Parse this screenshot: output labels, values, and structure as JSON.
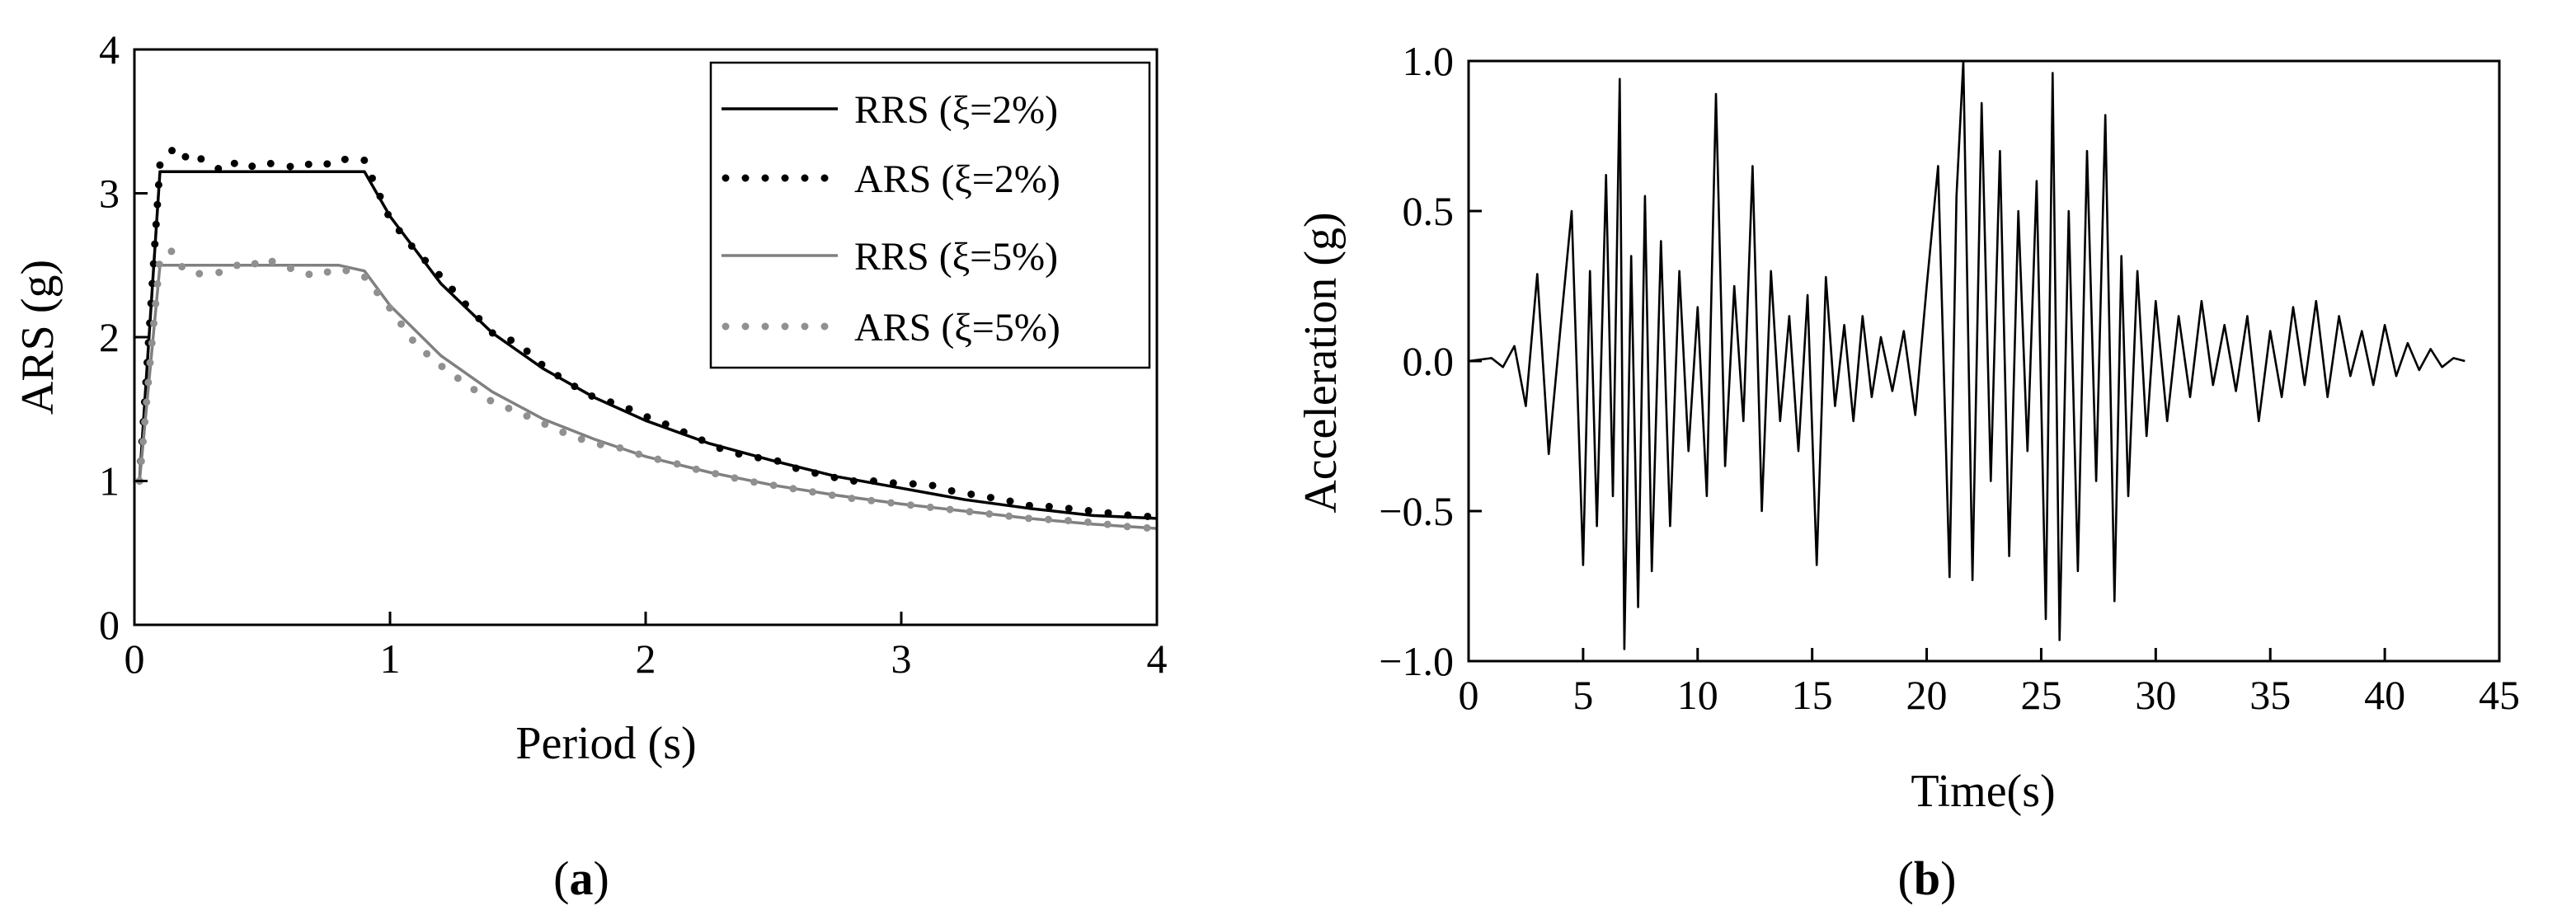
{
  "chart_data": [
    {
      "panel_label": {
        "open": "(",
        "letter": "a",
        "close": ")"
      },
      "type": "line",
      "xlabel": "Period (s)",
      "ylabel": "ARS (g)",
      "xlim": [
        0,
        4
      ],
      "ylim": [
        0,
        4
      ],
      "xticks": [
        0,
        1,
        2,
        3,
        4
      ],
      "yticks": [
        0,
        1,
        2,
        3,
        4
      ],
      "grid": false,
      "legend_position": "top-right",
      "series": [
        {
          "name": "RRS (ξ=2%)",
          "style": "solid",
          "color": "#000000",
          "x": [
            0.02,
            0.1,
            0.2,
            0.4,
            0.6,
            0.8,
            0.9,
            1.0,
            1.2,
            1.4,
            1.6,
            1.8,
            2.0,
            2.25,
            2.5,
            2.75,
            3.0,
            3.25,
            3.5,
            3.75,
            4.0
          ],
          "y": [
            1.0,
            3.15,
            3.15,
            3.15,
            3.15,
            3.15,
            3.15,
            2.84,
            2.37,
            2.03,
            1.78,
            1.58,
            1.42,
            1.26,
            1.14,
            1.03,
            0.95,
            0.87,
            0.81,
            0.76,
            0.74
          ]
        },
        {
          "name": "ARS (ξ=2%)",
          "style": "dotted",
          "color": "#000000",
          "x": [
            0.02,
            0.06,
            0.1,
            0.12,
            0.15,
            0.18,
            0.21,
            0.25,
            0.3,
            0.35,
            0.4,
            0.45,
            0.5,
            0.55,
            0.6,
            0.65,
            0.7,
            0.75,
            0.8,
            0.85,
            0.9,
            1.0,
            1.1,
            1.2,
            1.3,
            1.4,
            1.5,
            1.6,
            1.7,
            1.8,
            1.9,
            2.0,
            2.1,
            2.2,
            2.3,
            2.4,
            2.5,
            2.6,
            2.7,
            2.8,
            2.9,
            3.0,
            3.1,
            3.2,
            3.3,
            3.4,
            3.5,
            3.6,
            3.7,
            3.8,
            3.9,
            4.0
          ],
          "y": [
            1.0,
            2.1,
            3.2,
            3.27,
            3.3,
            3.32,
            3.22,
            3.25,
            3.2,
            3.15,
            3.22,
            3.18,
            3.22,
            3.2,
            3.19,
            3.17,
            3.22,
            3.2,
            3.25,
            3.22,
            3.23,
            2.82,
            2.6,
            2.42,
            2.22,
            2.03,
            1.96,
            1.8,
            1.68,
            1.58,
            1.53,
            1.45,
            1.38,
            1.3,
            1.22,
            1.17,
            1.15,
            1.08,
            1.04,
            1.0,
            1.0,
            0.98,
            0.98,
            0.93,
            0.9,
            0.87,
            0.83,
            0.82,
            0.8,
            0.78,
            0.76,
            0.75
          ]
        },
        {
          "name": "RRS (ξ=5%)",
          "style": "solid",
          "color": "#808080",
          "x": [
            0.02,
            0.1,
            0.2,
            0.4,
            0.6,
            0.8,
            0.9,
            1.0,
            1.2,
            1.4,
            1.6,
            1.8,
            2.0,
            2.25,
            2.5,
            2.75,
            3.0,
            3.25,
            3.5,
            3.75,
            4.0
          ],
          "y": [
            1.0,
            2.5,
            2.5,
            2.5,
            2.5,
            2.5,
            2.46,
            2.22,
            1.87,
            1.62,
            1.43,
            1.29,
            1.17,
            1.06,
            0.97,
            0.9,
            0.84,
            0.79,
            0.74,
            0.7,
            0.67
          ]
        },
        {
          "name": "ARS (ξ=5%)",
          "style": "dotted",
          "color": "#909090",
          "x": [
            0.02,
            0.06,
            0.1,
            0.12,
            0.15,
            0.18,
            0.21,
            0.25,
            0.3,
            0.35,
            0.4,
            0.45,
            0.5,
            0.55,
            0.6,
            0.65,
            0.7,
            0.75,
            0.8,
            0.85,
            0.9,
            1.0,
            1.1,
            1.2,
            1.3,
            1.4,
            1.5,
            1.6,
            1.7,
            1.8,
            1.9,
            2.0,
            2.1,
            2.2,
            2.3,
            2.4,
            2.5,
            2.6,
            2.7,
            2.8,
            2.9,
            3.0,
            3.1,
            3.2,
            3.3,
            3.4,
            3.5,
            3.6,
            3.7,
            3.8,
            3.9,
            4.0
          ],
          "y": [
            1.0,
            1.8,
            2.55,
            2.58,
            2.6,
            2.5,
            2.45,
            2.44,
            2.45,
            2.45,
            2.5,
            2.48,
            2.55,
            2.52,
            2.48,
            2.47,
            2.42,
            2.45,
            2.48,
            2.45,
            2.42,
            2.2,
            1.95,
            1.8,
            1.67,
            1.55,
            1.48,
            1.4,
            1.32,
            1.26,
            1.23,
            1.17,
            1.13,
            1.08,
            1.04,
            1.0,
            0.97,
            0.94,
            0.91,
            0.88,
            0.86,
            0.84,
            0.82,
            0.8,
            0.78,
            0.76,
            0.74,
            0.73,
            0.72,
            0.7,
            0.68,
            0.67
          ]
        }
      ]
    },
    {
      "panel_label": {
        "open": "(",
        "letter": "b",
        "close": ")"
      },
      "type": "line",
      "xlabel": "Time(s)",
      "ylabel": "Acceleration (g)",
      "xlim": [
        0,
        45
      ],
      "ylim": [
        -1.0,
        1.0
      ],
      "xticks": [
        0,
        5,
        10,
        15,
        20,
        25,
        30,
        35,
        40,
        45
      ],
      "yticks": [
        -1.0,
        -0.5,
        0.0,
        0.5,
        1.0
      ],
      "ytick_labels": [
        "−1.0",
        "−0.5",
        "0.0",
        "0.5",
        "1.0"
      ],
      "grid": false,
      "series": [
        {
          "style": "solid",
          "color": "#000000",
          "x": [
            0,
            1.0,
            1.5,
            2.0,
            2.5,
            3.0,
            3.5,
            4.0,
            4.5,
            5.0,
            5.3,
            5.6,
            6.0,
            6.3,
            6.6,
            6.8,
            7.1,
            7.4,
            7.7,
            8.0,
            8.4,
            8.8,
            9.2,
            9.6,
            10.0,
            10.4,
            10.8,
            11.2,
            11.6,
            12.0,
            12.4,
            12.8,
            13.2,
            13.6,
            14.0,
            14.4,
            14.8,
            15.2,
            15.6,
            16.0,
            16.4,
            16.8,
            17.2,
            17.6,
            18.0,
            18.5,
            19.0,
            19.5,
            20.0,
            20.5,
            21.0,
            21.3,
            21.6,
            22.0,
            22.4,
            22.8,
            23.2,
            23.6,
            24.0,
            24.4,
            24.8,
            25.2,
            25.5,
            25.8,
            26.2,
            26.6,
            27.0,
            27.4,
            27.8,
            28.2,
            28.5,
            28.8,
            29.2,
            29.6,
            30.0,
            30.5,
            31.0,
            31.5,
            32.0,
            32.5,
            33.0,
            33.5,
            34.0,
            34.5,
            35.0,
            35.5,
            36.0,
            36.5,
            37.0,
            37.5,
            38.0,
            38.5,
            39.0,
            39.5,
            40.0,
            40.5,
            41.0,
            41.5,
            42.0,
            42.5,
            43.0,
            43.5
          ],
          "y": [
            0.0,
            0.01,
            -0.02,
            0.05,
            -0.15,
            0.29,
            -0.31,
            0.1,
            0.5,
            -0.68,
            0.3,
            -0.55,
            0.62,
            -0.45,
            0.94,
            -0.96,
            0.35,
            -0.82,
            0.55,
            -0.7,
            0.4,
            -0.55,
            0.3,
            -0.3,
            0.18,
            -0.45,
            0.89,
            -0.35,
            0.25,
            -0.2,
            0.65,
            -0.5,
            0.3,
            -0.2,
            0.15,
            -0.3,
            0.22,
            -0.68,
            0.28,
            -0.15,
            0.12,
            -0.2,
            0.15,
            -0.12,
            0.08,
            -0.1,
            0.1,
            -0.18,
            0.25,
            0.65,
            -0.72,
            0.55,
            1.0,
            -0.73,
            0.86,
            -0.4,
            0.7,
            -0.65,
            0.5,
            -0.3,
            0.6,
            -0.86,
            0.96,
            -0.93,
            0.5,
            -0.7,
            0.7,
            -0.4,
            0.82,
            -0.8,
            0.35,
            -0.45,
            0.3,
            -0.25,
            0.2,
            -0.2,
            0.15,
            -0.12,
            0.2,
            -0.08,
            0.12,
            -0.1,
            0.15,
            -0.2,
            0.1,
            -0.12,
            0.18,
            -0.08,
            0.2,
            -0.12,
            0.15,
            -0.05,
            0.1,
            -0.08,
            0.12,
            -0.05,
            0.06,
            -0.03,
            0.04,
            -0.02,
            0.01,
            0.0
          ]
        }
      ]
    }
  ]
}
